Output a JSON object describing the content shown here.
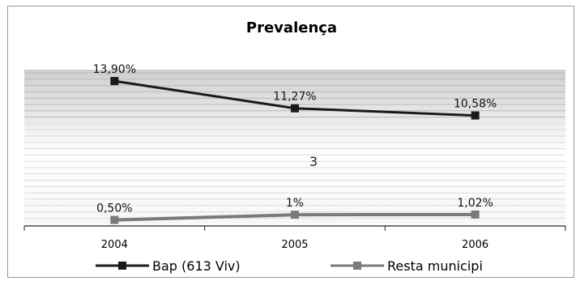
{
  "chart_data": {
    "type": "line",
    "title": "Prevalença",
    "categories": [
      "2004",
      "2005",
      "2006"
    ],
    "series": [
      {
        "name": "Bap (613 Viv)",
        "values": [
          13.9,
          11.27,
          10.58
        ],
        "labels": [
          "13,90%",
          "11,27%",
          "10,58%"
        ],
        "color": "#1a1a1a"
      },
      {
        "name": "Resta municipi",
        "values": [
          0.5,
          1.0,
          1.02
        ],
        "labels": [
          "0,50%",
          "1%",
          "1,02%"
        ],
        "color": "#7a7a7a"
      }
    ],
    "ylim": [
      0,
      15
    ],
    "grid": true,
    "legend_position": "bottom",
    "annotation": "3"
  }
}
